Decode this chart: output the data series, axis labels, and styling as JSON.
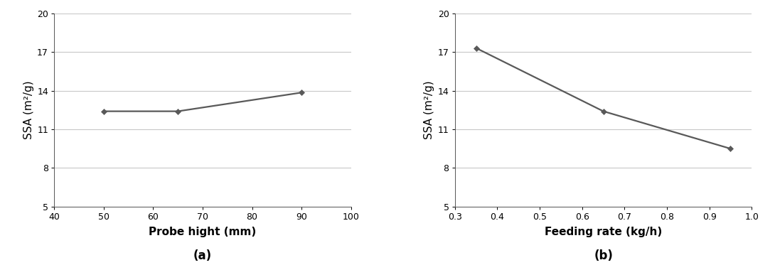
{
  "plot_a": {
    "x": [
      50,
      65,
      90
    ],
    "y": [
      12.4,
      12.4,
      13.85
    ],
    "xlabel": "Probe hight (mm)",
    "ylabel": "SSA (m²/g)",
    "xlim": [
      40,
      100
    ],
    "ylim": [
      5,
      20
    ],
    "xticks": [
      40,
      50,
      60,
      70,
      80,
      90,
      100
    ],
    "yticks": [
      5,
      8,
      11,
      14,
      17,
      20
    ],
    "label": "(a)"
  },
  "plot_b": {
    "x": [
      0.35,
      0.65,
      0.95
    ],
    "y": [
      17.3,
      12.4,
      9.5
    ],
    "xlabel": "Feeding rate (kg/h)",
    "ylabel": "SSA (m²/g)",
    "xlim": [
      0.3,
      1.0
    ],
    "ylim": [
      5,
      20
    ],
    "xticks": [
      0.3,
      0.4,
      0.5,
      0.6,
      0.7,
      0.8,
      0.9,
      1.0
    ],
    "yticks": [
      5,
      8,
      11,
      14,
      17,
      20
    ],
    "label": "(b)"
  },
  "line_color": "#595959",
  "marker": "D",
  "marker_size": 4.5,
  "marker_color": "#595959",
  "line_width": 1.6,
  "grid_color": "#c8c8c8",
  "xlabel_fontsize": 11,
  "ylabel_fontsize": 11,
  "tick_fontsize": 9,
  "sublabel_fontsize": 12,
  "bg_color": "#ffffff"
}
